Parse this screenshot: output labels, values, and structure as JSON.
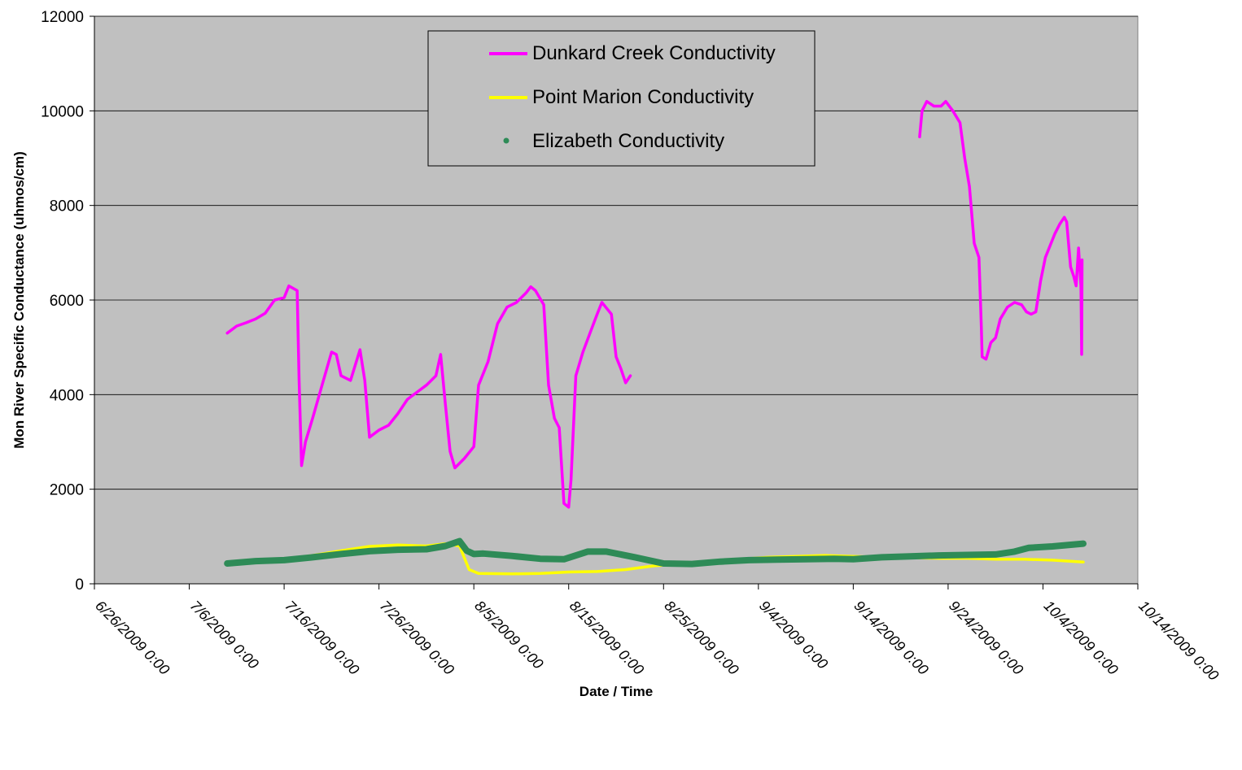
{
  "chart_data": {
    "type": "line",
    "title": "",
    "xlabel": "Date / Time",
    "ylabel": "Mon River Specific Conductance (uhmos/cm)",
    "xlim": [
      "2009-06-26 00:00",
      "2009-10-14 00:00"
    ],
    "ylim": [
      0,
      12000
    ],
    "x_tick_labels": [
      "6/26/2009 0:00",
      "7/6/2009 0:00",
      "7/16/2009 0:00",
      "7/26/2009 0:00",
      "8/5/2009 0:00",
      "8/15/2009 0:00",
      "8/25/2009 0:00",
      "9/4/2009 0:00",
      "9/14/2009 0:00",
      "9/24/2009 0:00",
      "10/4/2009 0:00",
      "10/14/2009 0:00"
    ],
    "y_tick_labels": [
      "0",
      "2000",
      "4000",
      "6000",
      "8000",
      "10000",
      "12000"
    ],
    "y_ticks": [
      0,
      2000,
      4000,
      6000,
      8000,
      10000,
      12000
    ],
    "grid": "horizontal",
    "background": "#c0c0c0",
    "legend_position": "top-center",
    "series": [
      {
        "name": "Dunkard Creek Conductivity",
        "color": "#ff00ff",
        "marker": "line",
        "segments": [
          [
            [
              "2009-07-10 00:00",
              5300
            ],
            [
              "2009-07-11 00:00",
              5450
            ],
            [
              "2009-07-12 00:00",
              5520
            ],
            [
              "2009-07-13 00:00",
              5600
            ],
            [
              "2009-07-14 00:00",
              5720
            ],
            [
              "2009-07-15 00:00",
              6000
            ],
            [
              "2009-07-16 00:00",
              6050
            ],
            [
              "2009-07-16 12:00",
              6300
            ],
            [
              "2009-07-17 09:00",
              6200
            ],
            [
              "2009-07-17 14:00",
              4300
            ],
            [
              "2009-07-17 20:00",
              2500
            ],
            [
              "2009-07-18 06:00",
              3000
            ],
            [
              "2009-07-19 00:00",
              3500
            ],
            [
              "2009-07-20 00:00",
              4200
            ],
            [
              "2009-07-21 00:00",
              4900
            ],
            [
              "2009-07-21 12:00",
              4850
            ],
            [
              "2009-07-22 00:00",
              4400
            ],
            [
              "2009-07-23 00:00",
              4300
            ],
            [
              "2009-07-24 00:00",
              4950
            ],
            [
              "2009-07-24 12:00",
              4300
            ],
            [
              "2009-07-25 00:00",
              3100
            ],
            [
              "2009-07-26 00:00",
              3250
            ],
            [
              "2009-07-27 00:00",
              3350
            ],
            [
              "2009-07-28 00:00",
              3600
            ],
            [
              "2009-07-29 00:00",
              3900
            ],
            [
              "2009-07-30 00:00",
              4050
            ],
            [
              "2009-07-31 00:00",
              4200
            ],
            [
              "2009-08-01 00:00",
              4400
            ],
            [
              "2009-08-01 12:00",
              4850
            ],
            [
              "2009-08-02 00:00",
              3800
            ],
            [
              "2009-08-02 12:00",
              2800
            ],
            [
              "2009-08-03 00:00",
              2450
            ],
            [
              "2009-08-04 00:00",
              2650
            ],
            [
              "2009-08-05 00:00",
              2900
            ],
            [
              "2009-08-05 12:00",
              4200
            ],
            [
              "2009-08-06 12:00",
              4700
            ],
            [
              "2009-08-07 12:00",
              5500
            ],
            [
              "2009-08-08 12:00",
              5850
            ],
            [
              "2009-08-09 12:00",
              5950
            ],
            [
              "2009-08-10 12:00",
              6150
            ],
            [
              "2009-08-11 00:00",
              6280
            ],
            [
              "2009-08-11 12:00",
              6200
            ],
            [
              "2009-08-12 09:00",
              5900
            ],
            [
              "2009-08-12 21:00",
              4200
            ],
            [
              "2009-08-13 12:00",
              3500
            ],
            [
              "2009-08-14 00:00",
              3300
            ],
            [
              "2009-08-14 12:00",
              1700
            ],
            [
              "2009-08-15 00:00",
              1620
            ],
            [
              "2009-08-15 06:00",
              2200
            ],
            [
              "2009-08-15 18:00",
              4400
            ],
            [
              "2009-08-16 12:00",
              4900
            ],
            [
              "2009-08-17 06:00",
              5300
            ],
            [
              "2009-08-18 00:00",
              5700
            ],
            [
              "2009-08-18 12:00",
              5950
            ],
            [
              "2009-08-19 12:00",
              5700
            ],
            [
              "2009-08-20 00:00",
              4800
            ],
            [
              "2009-08-20 12:00",
              4550
            ],
            [
              "2009-08-21 00:00",
              4250
            ],
            [
              "2009-08-21 12:00",
              4400
            ]
          ],
          [
            [
              "2009-09-21 00:00",
              9450
            ],
            [
              "2009-09-21 06:00",
              10000
            ],
            [
              "2009-09-21 18:00",
              10200
            ],
            [
              "2009-09-22 12:00",
              10100
            ],
            [
              "2009-09-23 06:00",
              10100
            ],
            [
              "2009-09-23 18:00",
              10200
            ],
            [
              "2009-09-24 12:00",
              10000
            ],
            [
              "2009-09-25 06:00",
              9750
            ],
            [
              "2009-09-25 18:00",
              9000
            ],
            [
              "2009-09-26 06:00",
              8400
            ],
            [
              "2009-09-26 18:00",
              7200
            ],
            [
              "2009-09-27 06:00",
              6900
            ],
            [
              "2009-09-27 12:00",
              5450
            ],
            [
              "2009-09-27 14:00",
              4800
            ],
            [
              "2009-09-28 00:00",
              4750
            ],
            [
              "2009-09-28 12:00",
              5100
            ],
            [
              "2009-09-29 00:00",
              5200
            ],
            [
              "2009-09-29 12:00",
              5600
            ],
            [
              "2009-09-30 06:00",
              5850
            ],
            [
              "2009-10-01 00:00",
              5950
            ],
            [
              "2009-10-01 18:00",
              5900
            ],
            [
              "2009-10-02 06:00",
              5750
            ],
            [
              "2009-10-02 18:00",
              5700
            ],
            [
              "2009-10-03 06:00",
              5750
            ],
            [
              "2009-10-03 18:00",
              6400
            ],
            [
              "2009-10-04 06:00",
              6900
            ],
            [
              "2009-10-04 18:00",
              7150
            ],
            [
              "2009-10-05 06:00",
              7400
            ],
            [
              "2009-10-05 18:00",
              7600
            ],
            [
              "2009-10-06 06:00",
              7750
            ],
            [
              "2009-10-06 12:00",
              7650
            ],
            [
              "2009-10-06 22:00",
              6700
            ],
            [
              "2009-10-07 06:00",
              6500
            ],
            [
              "2009-10-07 12:00",
              6300
            ],
            [
              "2009-10-07 18:00",
              7100
            ],
            [
              "2009-10-08 00:00",
              6300
            ],
            [
              "2009-10-08 02:00",
              4850
            ],
            [
              "2009-10-08 03:00",
              6850
            ]
          ]
        ]
      },
      {
        "name": "Point Marion Conductivity",
        "color": "#ffff00",
        "marker": "line",
        "segments": [
          [
            [
              "2009-07-10 00:00",
              420
            ],
            [
              "2009-07-13 00:00",
              470
            ],
            [
              "2009-07-16 00:00",
              520
            ],
            [
              "2009-07-19 00:00",
              600
            ],
            [
              "2009-07-22 00:00",
              700
            ],
            [
              "2009-07-25 00:00",
              790
            ],
            [
              "2009-07-28 00:00",
              820
            ],
            [
              "2009-07-31 00:00",
              800
            ],
            [
              "2009-08-02 00:00",
              850
            ],
            [
              "2009-08-03 12:00",
              800
            ],
            [
              "2009-08-04 00:00",
              550
            ],
            [
              "2009-08-04 12:00",
              300
            ],
            [
              "2009-08-05 12:00",
              220
            ],
            [
              "2009-08-09 00:00",
              210
            ],
            [
              "2009-08-12 00:00",
              220
            ],
            [
              "2009-08-15 00:00",
              250
            ],
            [
              "2009-08-18 00:00",
              260
            ],
            [
              "2009-08-21 00:00",
              300
            ],
            [
              "2009-08-24 00:00",
              380
            ],
            [
              "2009-08-27 00:00",
              420
            ],
            [
              "2009-08-30 00:00",
              480
            ],
            [
              "2009-09-02 00:00",
              520
            ],
            [
              "2009-09-05 00:00",
              560
            ],
            [
              "2009-09-08 00:00",
              580
            ],
            [
              "2009-09-11 00:00",
              600
            ],
            [
              "2009-09-14 00:00",
              580
            ],
            [
              "2009-09-17 00:00",
              560
            ],
            [
              "2009-09-20 00:00",
              550
            ],
            [
              "2009-09-23 00:00",
              540
            ],
            [
              "2009-09-26 00:00",
              540
            ],
            [
              "2009-09-29 00:00",
              520
            ],
            [
              "2009-10-02 00:00",
              520
            ],
            [
              "2009-10-05 00:00",
              500
            ],
            [
              "2009-10-08 06:00",
              460
            ]
          ]
        ]
      },
      {
        "name": "Elizabeth Conductivity",
        "color": "#2e8b57",
        "marker": "dot",
        "segments": [
          [
            [
              "2009-07-10 00:00",
              430
            ],
            [
              "2009-07-13 00:00",
              480
            ],
            [
              "2009-07-16 00:00",
              500
            ],
            [
              "2009-07-19 00:00",
              560
            ],
            [
              "2009-07-22 00:00",
              630
            ],
            [
              "2009-07-25 00:00",
              690
            ],
            [
              "2009-07-28 00:00",
              720
            ],
            [
              "2009-07-31 00:00",
              730
            ],
            [
              "2009-08-02 00:00",
              800
            ],
            [
              "2009-08-03 12:00",
              900
            ],
            [
              "2009-08-04 06:00",
              700
            ],
            [
              "2009-08-05 00:00",
              630
            ],
            [
              "2009-08-06 00:00",
              640
            ],
            [
              "2009-08-09 00:00",
              590
            ],
            [
              "2009-08-12 00:00",
              530
            ],
            [
              "2009-08-14 12:00",
              520
            ],
            [
              "2009-08-17 00:00",
              680
            ],
            [
              "2009-08-19 00:00",
              680
            ],
            [
              "2009-08-22 00:00",
              560
            ],
            [
              "2009-08-25 00:00",
              430
            ],
            [
              "2009-08-28 00:00",
              420
            ],
            [
              "2009-08-31 00:00",
              470
            ],
            [
              "2009-09-03 00:00",
              500
            ],
            [
              "2009-09-06 00:00",
              510
            ],
            [
              "2009-09-09 00:00",
              520
            ],
            [
              "2009-09-12 00:00",
              530
            ],
            [
              "2009-09-14 00:00",
              520
            ],
            [
              "2009-09-17 00:00",
              560
            ],
            [
              "2009-09-20 00:00",
              580
            ],
            [
              "2009-09-23 00:00",
              600
            ],
            [
              "2009-09-26 00:00",
              610
            ],
            [
              "2009-09-29 00:00",
              620
            ],
            [
              "2009-10-01 00:00",
              680
            ],
            [
              "2009-10-02 12:00",
              760
            ],
            [
              "2009-10-05 00:00",
              790
            ],
            [
              "2009-10-08 06:00",
              850
            ]
          ]
        ]
      }
    ]
  }
}
